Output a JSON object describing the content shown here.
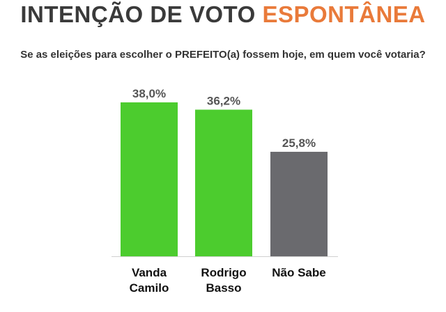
{
  "header": {
    "title_main": "INTENÇÃO DE VOTO",
    "title_accent": "ESPONTÂNEA",
    "question": "Se as eleições para escolher o PREFEITO(a) fossem hoje, em quem você votaria?"
  },
  "colors": {
    "title": "#3a3a3a",
    "accent": "#e97a3a",
    "bar_green": "#4ccc2e",
    "bar_gray": "#6a6a6e"
  },
  "chart_data": {
    "type": "bar",
    "categories": [
      [
        "Vanda",
        "Camilo"
      ],
      [
        "Rodrigo",
        "Basso"
      ],
      [
        "Não Sabe"
      ]
    ],
    "values": [
      38.0,
      36.2,
      25.8
    ],
    "value_labels": [
      "38,0%",
      "36,2%",
      "25,8%"
    ],
    "bar_colors": [
      "#4ccc2e",
      "#4ccc2e",
      "#6a6a6e"
    ],
    "ylim": [
      0,
      38.0
    ],
    "grid": false,
    "legend": "none"
  }
}
